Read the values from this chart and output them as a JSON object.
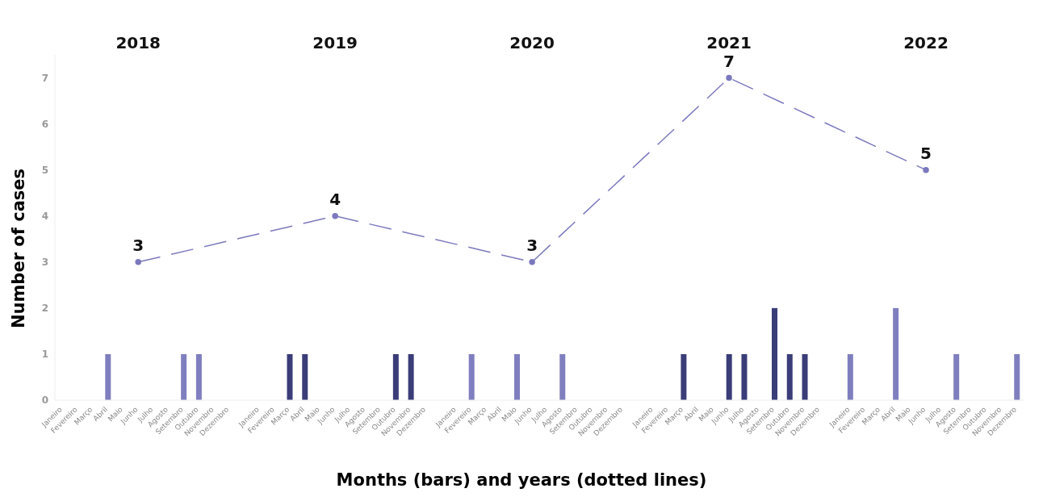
{
  "chart_data": {
    "type": "bar",
    "xlabel": "Months (bars) and years (dotted lines)",
    "ylabel": "Number of cases",
    "categories": [
      "Janeiro",
      "Fevereiro",
      "Março",
      "Abril",
      "Maio",
      "Junho",
      "Julho",
      "Agosto",
      "Setembro",
      "Outubro",
      "Novembro",
      "Dezembro",
      null,
      "Janeiro",
      "Fevereiro",
      "Março",
      "Abril",
      "Maio",
      "Junho",
      "Julho",
      "Agosto",
      "Setembro",
      "Outubro",
      "Novembro",
      "Dezembro",
      null,
      "Janeiro",
      "Fevereiro",
      "Março",
      "Abril",
      "Maio",
      "Junho",
      "Julho",
      "Agosto",
      "Setembro",
      "Outubro",
      "Novembro",
      "Dezembro",
      null,
      "Janeiro",
      "Fevereiro",
      "Março",
      "Abril",
      "Maio",
      "Junho",
      "Julho",
      "Agosto",
      "Setembro",
      "Outubro",
      "Novembro",
      "Dezembro",
      null,
      "Janeiro",
      "Fevereiro",
      "Março",
      "Abril",
      "Maio",
      "Junho",
      "Julho",
      "Agosto",
      "Setembro",
      "Outubro",
      "Novembro",
      "Dezembro"
    ],
    "series": [
      {
        "values": [
          0,
          0,
          0,
          1,
          0,
          0,
          0,
          0,
          1,
          1,
          0,
          0,
          null,
          0,
          0,
          1,
          1,
          0,
          0,
          0,
          0,
          0,
          1,
          1,
          0,
          null,
          0,
          1,
          0,
          0,
          1,
          0,
          0,
          1,
          0,
          0,
          0,
          0,
          null,
          0,
          0,
          1,
          0,
          0,
          1,
          1,
          0,
          2,
          1,
          1,
          0,
          null,
          1,
          0,
          0,
          2,
          0,
          0,
          0,
          1,
          0,
          0,
          0,
          1
        ],
        "colors": [
          "#7f7fbf",
          "#7f7fbf",
          "#7f7fbf",
          "#7f7fbf",
          "#7f7fbf",
          "#7f7fbf",
          "#7f7fbf",
          "#7f7fbf",
          "#7f7fbf",
          "#7f7fbf",
          "#7f7fbf",
          "#7f7fbf",
          null,
          "#3a3d78",
          "#3a3d78",
          "#3a3d78",
          "#3a3d78",
          "#3a3d78",
          "#3a3d78",
          "#3a3d78",
          "#3a3d78",
          "#3a3d78",
          "#3a3d78",
          "#3a3d78",
          "#3a3d78",
          null,
          "#7f7fbf",
          "#7f7fbf",
          "#7f7fbf",
          "#7f7fbf",
          "#7f7fbf",
          "#7f7fbf",
          "#7f7fbf",
          "#7f7fbf",
          "#7f7fbf",
          "#7f7fbf",
          "#7f7fbf",
          "#7f7fbf",
          null,
          "#3a3d78",
          "#3a3d78",
          "#3a3d78",
          "#3a3d78",
          "#3a3d78",
          "#3a3d78",
          "#3a3d78",
          "#3a3d78",
          "#3a3d78",
          "#3a3d78",
          "#3a3d78",
          "#3a3d78",
          null,
          "#7f7fbf",
          "#7f7fbf",
          "#7f7fbf",
          "#7f7fbf",
          "#7f7fbf",
          "#7f7fbf",
          "#7f7fbf",
          "#7f7fbf",
          "#7f7fbf",
          "#7f7fbf",
          "#7f7fbf",
          "#7f7fbf"
        ]
      },
      {
        "type": "line",
        "color": "#7b79bd",
        "line_style": "dashed",
        "marker": "circle",
        "values": [
          null,
          null,
          null,
          null,
          null,
          3,
          null,
          null,
          null,
          null,
          null,
          null,
          null,
          null,
          null,
          null,
          null,
          null,
          4,
          null,
          null,
          null,
          null,
          null,
          null,
          null,
          null,
          null,
          null,
          null,
          null,
          3,
          null,
          null,
          null,
          null,
          null,
          null,
          null,
          null,
          null,
          null,
          null,
          null,
          7,
          null,
          null,
          null,
          null,
          null,
          null,
          null,
          null,
          null,
          null,
          null,
          null,
          5,
          null,
          null,
          null,
          null,
          null,
          null
        ],
        "value_labels": [
          null,
          null,
          null,
          null,
          null,
          "3",
          null,
          null,
          null,
          null,
          null,
          null,
          null,
          null,
          null,
          null,
          null,
          null,
          "4",
          null,
          null,
          null,
          null,
          null,
          null,
          null,
          null,
          null,
          null,
          null,
          null,
          "3",
          null,
          null,
          null,
          null,
          null,
          null,
          null,
          null,
          null,
          null,
          null,
          null,
          "7",
          null,
          null,
          null,
          null,
          null,
          null,
          null,
          null,
          null,
          null,
          null,
          null,
          "5",
          null,
          null,
          null,
          null,
          null,
          null
        ]
      }
    ],
    "annotations": [
      "2018",
      "2019",
      "2020",
      "2021",
      "2022"
    ],
    "ylim": [
      0,
      7.5
    ],
    "yticks": [
      0,
      1,
      2,
      3,
      4,
      5,
      6,
      7
    ]
  }
}
